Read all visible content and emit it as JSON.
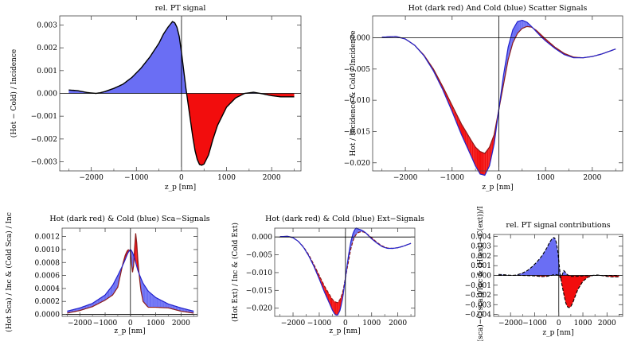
{
  "chart_data": [
    {
      "id": "p1",
      "type": "area",
      "title": "rel. PT signal",
      "xlabel": "z_p [nm]",
      "ylabel": "(Hot − Cold) / Incidence",
      "xlim": [
        -2700,
        2650
      ],
      "ylim": [
        -0.0034,
        0.0034
      ],
      "xticks": [
        -2000,
        -1000,
        0,
        1000,
        2000
      ],
      "xtick_labels": [
        "−2000",
        "−1000",
        "0",
        "1000",
        "2000"
      ],
      "yticks": [
        -0.003,
        -0.002,
        -0.001,
        0.0,
        0.001,
        0.002,
        0.003
      ],
      "ytick_labels": [
        "−0.003",
        "−0.002",
        "−0.001",
        "0.000",
        "0.001",
        "0.002",
        "0.003"
      ],
      "colors": {
        "positive_fill": "#6a6ef4",
        "negative_fill": "#f20d0d",
        "line": "#000000"
      },
      "series": [
        {
          "x": [
            -2500,
            -2300,
            -2100,
            -1900,
            -1800,
            -1700,
            -1500,
            -1300,
            -1100,
            -900,
            -700,
            -500,
            -400,
            -300,
            -200,
            -150,
            -100,
            -50,
            0,
            50,
            100,
            150,
            200,
            250,
            300,
            350,
            400,
            450,
            500,
            600,
            700,
            800,
            1000,
            1200,
            1400,
            1600,
            1800,
            2000,
            2200,
            2500
          ],
          "y": [
            0.00015,
            0.00012,
            4e-05,
            0.0,
            3e-05,
            8e-05,
            0.00022,
            0.0004,
            0.0007,
            0.0011,
            0.0016,
            0.0022,
            0.0026,
            0.0029,
            0.00315,
            0.0031,
            0.0029,
            0.0025,
            0.0018,
            0.001,
            0.0002,
            -0.0005,
            -0.0012,
            -0.0019,
            -0.0025,
            -0.0029,
            -0.00312,
            -0.00315,
            -0.0031,
            -0.0027,
            -0.002,
            -0.0014,
            -0.0006,
            -0.0002,
            0.0,
            5e-05,
            -2e-05,
            -0.0001,
            -0.00015,
            -0.00015
          ]
        }
      ]
    },
    {
      "id": "p2",
      "type": "area",
      "title": "Hot (dark red) And Cold (blue) Scatter Signals",
      "xlabel": "z_p [nm]",
      "ylabel": "Hot / Incidence  &  Cold / Incidence",
      "xlim": [
        -2700,
        2650
      ],
      "ylim": [
        -0.0213,
        0.0035
      ],
      "xticks": [
        -2000,
        -1000,
        0,
        1000,
        2000
      ],
      "xtick_labels": [
        "−2000",
        "−1000",
        "0",
        "1000",
        "2000"
      ],
      "yticks": [
        -0.02,
        -0.015,
        -0.01,
        -0.005,
        0.0
      ],
      "ytick_labels": [
        "−0.020",
        "−0.015",
        "−0.010",
        "−0.005",
        "0.000"
      ],
      "colors": {
        "positive_fill": "#6a6ef4",
        "negative_fill": "#f20d0d",
        "hot": "#8b1a1a",
        "cold": "#2222cc"
      },
      "series": [
        {
          "name": "Hot",
          "x": [
            -2500,
            -2200,
            -2000,
            -1800,
            -1600,
            -1400,
            -1200,
            -1000,
            -800,
            -600,
            -500,
            -400,
            -300,
            -200,
            -100,
            0,
            100,
            200,
            300,
            400,
            500,
            600,
            700,
            800,
            900,
            1000,
            1200,
            1400,
            1600,
            1800,
            2000,
            2200,
            2500
          ],
          "y": [
            0.0001,
            0.0002,
            -0.0002,
            -0.0012,
            -0.0028,
            -0.005,
            -0.0078,
            -0.0108,
            -0.0138,
            -0.0163,
            -0.0175,
            -0.0182,
            -0.0185,
            -0.0175,
            -0.0155,
            -0.0115,
            -0.0075,
            -0.0035,
            -0.0008,
            0.0007,
            0.0015,
            0.0018,
            0.0017,
            0.0012,
            0.0005,
            -0.0002,
            -0.0015,
            -0.0025,
            -0.0031,
            -0.0032,
            -0.003,
            -0.0026,
            -0.0018
          ]
        },
        {
          "name": "Cold",
          "x": [
            -2500,
            -2200,
            -2000,
            -1800,
            -1600,
            -1400,
            -1200,
            -1000,
            -800,
            -600,
            -500,
            -400,
            -300,
            -200,
            -100,
            0,
            100,
            200,
            300,
            400,
            500,
            600,
            700,
            800,
            900,
            1000,
            1200,
            1400,
            1600,
            1800,
            2000,
            2200,
            2500
          ],
          "y": [
            0.0001,
            0.0002,
            -0.0002,
            -0.0012,
            -0.0029,
            -0.0053,
            -0.0083,
            -0.0118,
            -0.0155,
            -0.0188,
            -0.0205,
            -0.0218,
            -0.022,
            -0.0205,
            -0.017,
            -0.0115,
            -0.006,
            -0.0015,
            0.0013,
            0.0026,
            0.0028,
            0.0025,
            0.0018,
            0.001,
            0.0002,
            -0.0005,
            -0.0017,
            -0.0027,
            -0.0032,
            -0.0032,
            -0.003,
            -0.0026,
            -0.0018
          ]
        }
      ]
    },
    {
      "id": "p3",
      "type": "area",
      "title": "Hot (dark red) & Cold (blue) Sca−Signals",
      "xlabel": "z_p [nm]",
      "ylabel": "(Hot Sca) / Inc  &  (Cold Sca) / Inc",
      "xlim": [
        -2700,
        2650
      ],
      "ylim": [
        -3e-05,
        0.00133
      ],
      "xticks": [
        -2000,
        -1000,
        0,
        1000,
        2000
      ],
      "xtick_labels": [
        "−2000",
        "−1000",
        "0",
        "1000",
        "2000"
      ],
      "yticks": [
        0.0,
        0.0002,
        0.0004,
        0.0006,
        0.0008,
        0.001,
        0.0012
      ],
      "ytick_labels": [
        "0.0000",
        "0.0002",
        "0.0004",
        "0.0006",
        "0.0008",
        "0.0010",
        "0.0012"
      ],
      "colors": {
        "positive_fill": "#6a6ef4",
        "negative_fill": "#f20d0d",
        "hot": "#8b1a1a",
        "cold": "#2222cc"
      },
      "series": [
        {
          "name": "Hot",
          "x": [
            -2500,
            -2000,
            -1500,
            -1000,
            -700,
            -500,
            -400,
            -300,
            -200,
            -100,
            0,
            50,
            100,
            150,
            200,
            250,
            300,
            400,
            500,
            700,
            1000,
            1500,
            2000,
            2500
          ],
          "y": [
            2e-05,
            6e-05,
            0.00012,
            0.00022,
            0.0003,
            0.00042,
            0.0006,
            0.00078,
            0.00092,
            0.001,
            0.00098,
            0.00075,
            0.0006,
            0.0009,
            0.00128,
            0.0011,
            0.0008,
            0.0004,
            0.0002,
            0.00011,
            0.00011,
            0.0001,
            5e-05,
            2e-05
          ]
        },
        {
          "name": "Cold",
          "x": [
            -2500,
            -2000,
            -1500,
            -1000,
            -700,
            -500,
            -400,
            -300,
            -200,
            -100,
            0,
            50,
            100,
            150,
            200,
            250,
            300,
            400,
            500,
            700,
            1000,
            1500,
            2000,
            2500
          ],
          "y": [
            5e-05,
            0.0001,
            0.00017,
            0.0003,
            0.00045,
            0.0006,
            0.00068,
            0.00076,
            0.00085,
            0.00095,
            0.001,
            0.00098,
            0.00094,
            0.00088,
            0.00081,
            0.00074,
            0.00067,
            0.00057,
            0.00048,
            0.00036,
            0.00026,
            0.00016,
            0.0001,
            5e-05
          ]
        }
      ]
    },
    {
      "id": "p4",
      "type": "area",
      "title": "Hot (dark red) & Cold (blue) Ext−Signals",
      "xlabel": "z_p [nm]",
      "ylabel": "(Hot Ext) / Inc  &  (Cold Ext)",
      "xlim": [
        -2700,
        2650
      ],
      "ylim": [
        -0.0223,
        0.0025
      ],
      "xticks": [
        -2000,
        -1000,
        0,
        1000,
        2000
      ],
      "xtick_labels": [
        "−2000",
        "−1000",
        "0",
        "1000",
        "2000"
      ],
      "yticks": [
        -0.02,
        -0.015,
        -0.01,
        -0.005,
        0.0
      ],
      "ytick_labels": [
        "−0.020",
        "−0.015",
        "−0.010",
        "−0.005",
        "0.000"
      ],
      "colors": {
        "positive_fill": "#6a6ef4",
        "negative_fill": "#f20d0d",
        "hot": "#8b1a1a",
        "cold": "#2222cc"
      },
      "series": [
        {
          "name": "Hot",
          "x": [
            -2500,
            -2200,
            -2000,
            -1800,
            -1600,
            -1400,
            -1200,
            -1000,
            -800,
            -600,
            -500,
            -400,
            -300,
            -200,
            -100,
            0,
            100,
            200,
            300,
            400,
            500,
            600,
            700,
            800,
            900,
            1000,
            1200,
            1400,
            1600,
            1800,
            2000,
            2200,
            2500
          ],
          "y": [
            0.0001,
            0.0002,
            -0.0002,
            -0.0012,
            -0.0028,
            -0.005,
            -0.0078,
            -0.0108,
            -0.0138,
            -0.0163,
            -0.0175,
            -0.0182,
            -0.0185,
            -0.0175,
            -0.0155,
            -0.0115,
            -0.0075,
            -0.0035,
            -0.0008,
            0.0007,
            0.0013,
            0.0015,
            0.0014,
            0.001,
            0.0004,
            -0.0002,
            -0.0015,
            -0.0025,
            -0.0031,
            -0.0032,
            -0.003,
            -0.0026,
            -0.0018
          ]
        },
        {
          "name": "Cold",
          "x": [
            -2500,
            -2200,
            -2000,
            -1800,
            -1600,
            -1400,
            -1200,
            -1000,
            -800,
            -600,
            -500,
            -400,
            -300,
            -200,
            -100,
            0,
            100,
            200,
            300,
            400,
            500,
            600,
            700,
            800,
            900,
            1000,
            1200,
            1400,
            1600,
            1800,
            2000,
            2200,
            2500
          ],
          "y": [
            0.0001,
            0.0002,
            -0.0002,
            -0.0012,
            -0.0029,
            -0.0053,
            -0.0083,
            -0.0118,
            -0.0155,
            -0.0188,
            -0.0205,
            -0.0218,
            -0.022,
            -0.0205,
            -0.017,
            -0.0115,
            -0.006,
            -0.0015,
            0.0013,
            0.0026,
            0.0022,
            0.002,
            0.0016,
            0.001,
            0.0002,
            -0.0005,
            -0.0017,
            -0.0027,
            -0.0032,
            -0.0032,
            -0.003,
            -0.0026,
            -0.0018
          ]
        }
      ]
    },
    {
      "id": "p5",
      "type": "area",
      "title": "rel. PT signal contributions",
      "xlabel": "z_p [nm]",
      "ylabel": "[(sca)−C(sca)]/Inc  &  (H(ext)−C(ext))/I",
      "xlim": [
        -2700,
        2650
      ],
      "ylim": [
        -0.0042,
        0.0042
      ],
      "xticks": [
        -2000,
        -1000,
        0,
        1000,
        2000
      ],
      "xtick_labels": [
        "−2000",
        "−1000",
        "0",
        "1000",
        "2000"
      ],
      "yticks": [
        -0.004,
        -0.003,
        -0.002,
        -0.001,
        0.0,
        0.001,
        0.002,
        0.003,
        0.004
      ],
      "ytick_labels": [
        "−0.004",
        "−0.003",
        "−0.002",
        "−0.001",
        "0.000",
        "0.001",
        "0.002",
        "0.003",
        "0.004"
      ],
      "colors": {
        "positive_fill": "#6a6ef4",
        "negative_fill": "#f20d0d",
        "line": "#000000"
      },
      "series": [
        {
          "name": "sca",
          "x": [
            -2500,
            -2000,
            -1500,
            -1000,
            -700,
            -500,
            -400,
            -300,
            -200,
            -100,
            0,
            50,
            100,
            150,
            200,
            250,
            300,
            400,
            500,
            700,
            1000,
            1500,
            2000,
            2500
          ],
          "y": [
            0.0,
            0.0,
            0.0,
            -5e-05,
            -0.00012,
            -0.0001,
            -5e-05,
            0.0,
            0.0001,
            0.0001,
            0.0,
            -0.0002,
            -0.0003,
            0.0001,
            0.0005,
            0.0004,
            0.0002,
            0.0,
            -0.0001,
            -0.0001,
            -5e-05,
            0.0,
            0.0,
            0.0
          ]
        },
        {
          "name": "ext",
          "x": [
            -2500,
            -2300,
            -2100,
            -1900,
            -1800,
            -1700,
            -1500,
            -1300,
            -1100,
            -900,
            -700,
            -500,
            -400,
            -300,
            -200,
            -150,
            -100,
            -50,
            0,
            50,
            100,
            150,
            200,
            250,
            300,
            350,
            400,
            450,
            500,
            600,
            700,
            800,
            1000,
            1200,
            1400,
            1600,
            1800,
            2000,
            2200,
            2500
          ],
          "y": [
            0.0001,
            8e-05,
            3e-05,
            0.0,
            3e-05,
            8e-05,
            0.00025,
            0.0005,
            0.0009,
            0.0014,
            0.002,
            0.0028,
            0.0033,
            0.0037,
            0.0039,
            0.0038,
            0.0034,
            0.0027,
            0.0015,
            0.0003,
            -0.0006,
            -0.0012,
            -0.0018,
            -0.0024,
            -0.0029,
            -0.0032,
            -0.0033,
            -0.0033,
            -0.0032,
            -0.0027,
            -0.002,
            -0.0014,
            -0.0006,
            -0.0002,
            0.0,
            5e-05,
            -2e-05,
            -0.0001,
            -0.00015,
            -0.00015
          ]
        }
      ]
    }
  ]
}
